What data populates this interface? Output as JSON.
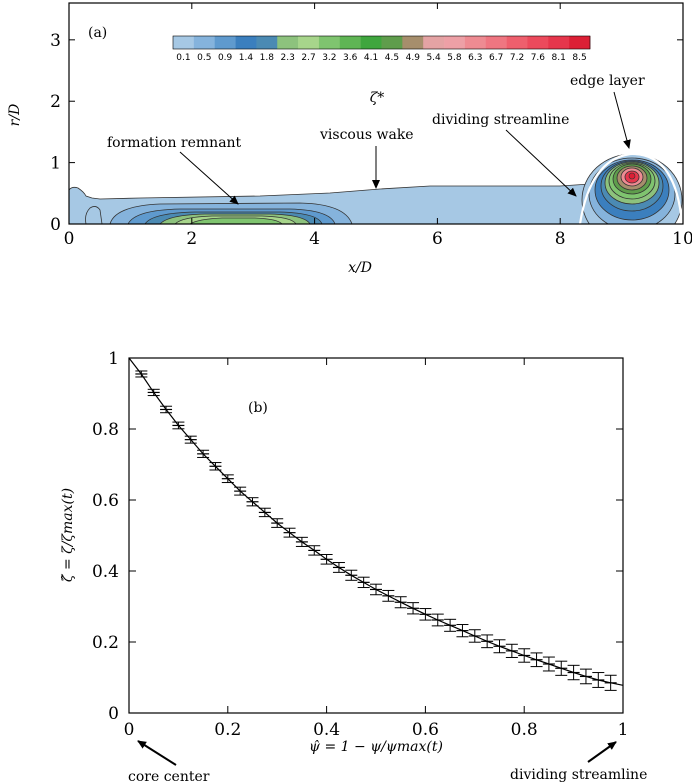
{
  "chart_data": [
    {
      "panel": "(a)",
      "type": "heatmap",
      "xlabel": "x/D",
      "ylabel": "r/D",
      "xlim": [
        0,
        10
      ],
      "ylim": [
        0,
        3.6
      ],
      "xticks": [
        "0",
        "2",
        "4",
        "6",
        "8",
        "10"
      ],
      "yticks": [
        "0",
        "1",
        "2",
        "3"
      ],
      "colorbar": {
        "label": "ζ*",
        "levels": [
          "0.1",
          "0.5",
          "0.9",
          "1.4",
          "1.8",
          "2.3",
          "2.7",
          "3.2",
          "3.6",
          "4.1",
          "4.5",
          "4.9",
          "5.4",
          "5.8",
          "6.3",
          "6.7",
          "7.2",
          "7.6",
          "8.1",
          "8.5"
        ],
        "colors": [
          "#a6c8e4",
          "#85b3dc",
          "#5f9ace",
          "#3b7fbe",
          "#4b8ab3",
          "#8dc27d",
          "#a7d58b",
          "#7fc46f",
          "#5fb554",
          "#3fa63e",
          "#5f9d4c",
          "#a68e6c",
          "#e4a3a4",
          "#eda0a6",
          "#ee8b92",
          "#ef7681",
          "#ee5f6d",
          "#ec4a5c",
          "#e6364c",
          "#dc1f35"
        ]
      },
      "annotations": [
        {
          "text": "formation remnant"
        },
        {
          "text": "viscous wake"
        },
        {
          "text": "dividing streamline"
        },
        {
          "text": "edge layer"
        }
      ]
    },
    {
      "panel": "(b)",
      "type": "line",
      "xlabel": "ψ̂ = 1 − ψ/ψmax(t)",
      "ylabel": "ζ̂ = ζ/ζmax(t)",
      "xlim": [
        0,
        1
      ],
      "ylim": [
        0,
        1
      ],
      "xticks": [
        "0",
        "0.2",
        "0.4",
        "0.6",
        "0.8",
        "1"
      ],
      "yticks": [
        "0",
        "0.2",
        "0.4",
        "0.6",
        "0.8",
        "1"
      ],
      "x": [
        0.025,
        0.05,
        0.075,
        0.1,
        0.125,
        0.15,
        0.175,
        0.2,
        0.225,
        0.25,
        0.275,
        0.3,
        0.325,
        0.35,
        0.375,
        0.4,
        0.425,
        0.45,
        0.475,
        0.5,
        0.525,
        0.55,
        0.575,
        0.6,
        0.625,
        0.65,
        0.675,
        0.7,
        0.725,
        0.75,
        0.775,
        0.8,
        0.825,
        0.85,
        0.875,
        0.9,
        0.925,
        0.95,
        0.975
      ],
      "y": [
        0.955,
        0.903,
        0.855,
        0.81,
        0.77,
        0.73,
        0.695,
        0.66,
        0.625,
        0.595,
        0.565,
        0.535,
        0.508,
        0.482,
        0.458,
        0.433,
        0.41,
        0.388,
        0.368,
        0.348,
        0.33,
        0.312,
        0.295,
        0.278,
        0.262,
        0.247,
        0.232,
        0.217,
        0.202,
        0.188,
        0.175,
        0.162,
        0.15,
        0.138,
        0.126,
        0.114,
        0.103,
        0.093,
        0.085
      ],
      "annotations": [
        {
          "text": "core center"
        },
        {
          "text": "dividing streamline"
        }
      ]
    }
  ],
  "labels": {
    "a_xlabel_var": "x/D",
    "a_ylabel_var": "r/D",
    "a_panel": "(a)",
    "a_colorbar_label": "ζ*",
    "b_panel": "(b)",
    "b_ylabel": "ζ̂ = ζ/ζmax(t)",
    "b_xlabel": "ψ̂ = 1 − ψ/ψmax(t)",
    "ann_formation": "formation remnant",
    "ann_wake": "viscous wake",
    "ann_dividing_a": "dividing streamline",
    "ann_edge": "edge layer",
    "ann_core": "core center",
    "ann_dividing_b": "dividing streamline"
  }
}
